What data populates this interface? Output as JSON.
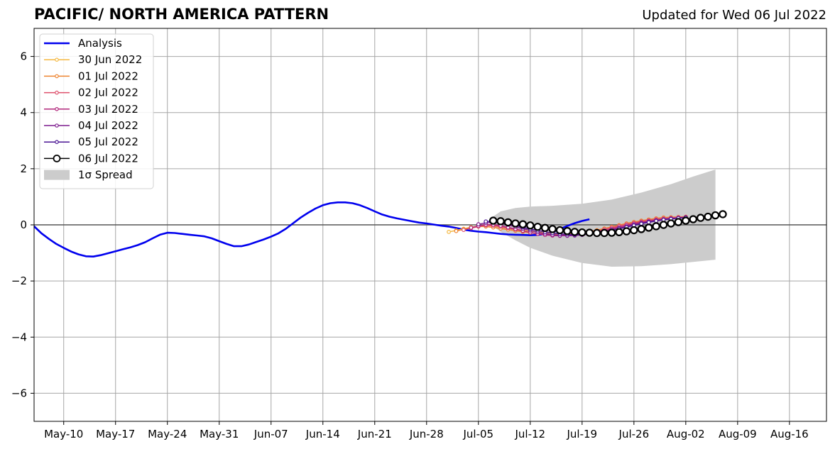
{
  "title": "PACIFIC/ NORTH AMERICA PATTERN",
  "updated": "Updated for Wed 06 Jul 2022",
  "chart_data": {
    "type": "line",
    "title": "PACIFIC/ NORTH AMERICA PATTERN",
    "xlabel": "",
    "ylabel": "",
    "xlim": [
      "2022-05-06",
      "2022-08-21"
    ],
    "ylim": [
      -7,
      7
    ],
    "x_ticks": [
      "May-10",
      "May-17",
      "May-24",
      "May-31",
      "Jun-07",
      "Jun-14",
      "Jun-21",
      "Jun-28",
      "Jul-05",
      "Jul-12",
      "Jul-19",
      "Jul-26",
      "Aug-02",
      "Aug-09",
      "Aug-16"
    ],
    "y_ticks": [
      -6,
      -4,
      -2,
      0,
      2,
      4,
      6
    ],
    "y_tick_labels": [
      "−6",
      "−4",
      "−2",
      "0",
      "2",
      "4",
      "6"
    ],
    "grid": true,
    "zero_line": true,
    "legend_position": "top-left",
    "analysis": {
      "name": "Analysis",
      "color": "#0000ee",
      "x_start": "2022-05-06",
      "values": [
        -0.05,
        -0.3,
        -0.5,
        -0.68,
        -0.82,
        -0.95,
        -1.05,
        -1.12,
        -1.13,
        -1.08,
        -1.01,
        -0.94,
        -0.87,
        -0.8,
        -0.72,
        -0.62,
        -0.48,
        -0.35,
        -0.28,
        -0.29,
        -0.32,
        -0.35,
        -0.38,
        -0.41,
        -0.48,
        -0.58,
        -0.68,
        -0.76,
        -0.76,
        -0.7,
        -0.61,
        -0.52,
        -0.42,
        -0.3,
        -0.14,
        0.06,
        0.26,
        0.43,
        0.58,
        0.7,
        0.77,
        0.8,
        0.8,
        0.77,
        0.7,
        0.6,
        0.48,
        0.37,
        0.29,
        0.23,
        0.18,
        0.13,
        0.08,
        0.05,
        0.01,
        -0.03,
        -0.06,
        -0.11,
        -0.17,
        -0.21,
        -0.24,
        -0.26,
        -0.29,
        -0.32,
        -0.34,
        -0.35,
        -0.36,
        -0.37,
        -0.36,
        -0.32,
        -0.26,
        -0.15,
        -0.04,
        0.06,
        0.14,
        0.2
      ]
    },
    "forecasts": [
      {
        "name": "30 Jun 2022",
        "color": "#f5b841",
        "x_start": "2022-07-01",
        "values": [
          -0.25,
          -0.2,
          -0.14,
          -0.08,
          -0.04,
          -0.02,
          -0.04,
          -0.08,
          -0.12,
          -0.16,
          -0.19,
          -0.22,
          -0.25,
          -0.28,
          -0.31,
          -0.33,
          -0.34,
          -0.33,
          -0.31,
          -0.28,
          -0.25,
          -0.21,
          -0.17,
          -0.12,
          -0.06,
          0.0,
          0.05,
          0.1,
          0.14,
          0.18,
          0.22,
          0.24,
          0.27
        ]
      },
      {
        "name": "01 Jul 2022",
        "color": "#ee8430",
        "x_start": "2022-07-02",
        "values": [
          -0.22,
          -0.16,
          -0.1,
          -0.06,
          -0.06,
          -0.09,
          -0.13,
          -0.17,
          -0.21,
          -0.25,
          -0.28,
          -0.31,
          -0.33,
          -0.34,
          -0.34,
          -0.33,
          -0.31,
          -0.28,
          -0.24,
          -0.19,
          -0.13,
          -0.07,
          -0.01,
          0.05,
          0.1,
          0.15,
          0.19,
          0.23,
          0.26,
          0.27,
          0.28,
          0.29
        ]
      },
      {
        "name": "02 Jul 2022",
        "color": "#de4f6b",
        "x_start": "2022-07-03",
        "values": [
          -0.18,
          -0.12,
          -0.06,
          -0.02,
          -0.03,
          -0.07,
          -0.12,
          -0.17,
          -0.22,
          -0.27,
          -0.31,
          -0.34,
          -0.36,
          -0.37,
          -0.36,
          -0.34,
          -0.31,
          -0.27,
          -0.22,
          -0.16,
          -0.1,
          -0.04,
          0.02,
          0.07,
          0.12,
          0.16,
          0.2,
          0.23,
          0.25,
          0.27,
          0.28
        ]
      },
      {
        "name": "03 Jul 2022",
        "color": "#b0247a",
        "x_start": "2022-07-04",
        "values": [
          -0.1,
          -0.04,
          0.01,
          0.01,
          -0.03,
          -0.09,
          -0.15,
          -0.21,
          -0.27,
          -0.32,
          -0.36,
          -0.38,
          -0.39,
          -0.38,
          -0.36,
          -0.33,
          -0.29,
          -0.25,
          -0.2,
          -0.14,
          -0.08,
          -0.02,
          0.04,
          0.09,
          0.13,
          0.17,
          0.2,
          0.23,
          0.25,
          0.27
        ]
      },
      {
        "name": "04 Jul 2022",
        "color": "#7d1c8e",
        "x_start": "2022-07-05",
        "values": [
          0.02,
          0.07,
          0.09,
          0.06,
          0.0,
          -0.07,
          -0.14,
          -0.2,
          -0.26,
          -0.31,
          -0.35,
          -0.38,
          -0.39,
          -0.38,
          -0.36,
          -0.33,
          -0.29,
          -0.24,
          -0.18,
          -0.12,
          -0.06,
          0.0,
          0.06,
          0.11,
          0.15,
          0.19,
          0.22,
          0.24,
          0.26
        ]
      },
      {
        "name": "05 Jul 2022",
        "color": "#4a1493",
        "x_start": "2022-07-06",
        "values": [
          0.12,
          0.13,
          0.1,
          0.04,
          -0.02,
          -0.09,
          -0.15,
          -0.2,
          -0.25,
          -0.29,
          -0.32,
          -0.34,
          -0.35,
          -0.34,
          -0.32,
          -0.29,
          -0.25,
          -0.2,
          -0.14,
          -0.08,
          -0.02,
          0.04,
          0.09,
          0.14,
          0.18,
          0.21,
          0.24,
          0.26
        ]
      }
    ],
    "current": {
      "name": "06 Jul 2022",
      "color": "#000000",
      "x_start": "2022-07-07",
      "values": [
        0.15,
        0.13,
        0.09,
        0.05,
        0.02,
        -0.02,
        -0.07,
        -0.11,
        -0.15,
        -0.19,
        -0.22,
        -0.25,
        -0.27,
        -0.28,
        -0.29,
        -0.29,
        -0.28,
        -0.26,
        -0.23,
        -0.19,
        -0.15,
        -0.1,
        -0.05,
        0.0,
        0.05,
        0.1,
        0.15,
        0.2,
        0.25,
        0.29,
        0.34,
        0.38
      ]
    },
    "spread": {
      "name": "1σ Spread",
      "color": "#cccccc",
      "x": [
        "2022-07-07",
        "2022-07-08",
        "2022-07-10",
        "2022-07-12",
        "2022-07-15",
        "2022-07-19",
        "2022-07-23",
        "2022-07-27",
        "2022-07-31",
        "2022-08-03",
        "2022-08-06"
      ],
      "upper": [
        0.3,
        0.48,
        0.6,
        0.65,
        0.68,
        0.75,
        0.9,
        1.15,
        1.45,
        1.72,
        1.97
      ],
      "lower": [
        -0.05,
        -0.25,
        -0.55,
        -0.82,
        -1.1,
        -1.36,
        -1.49,
        -1.47,
        -1.4,
        -1.32,
        -1.24
      ]
    }
  }
}
